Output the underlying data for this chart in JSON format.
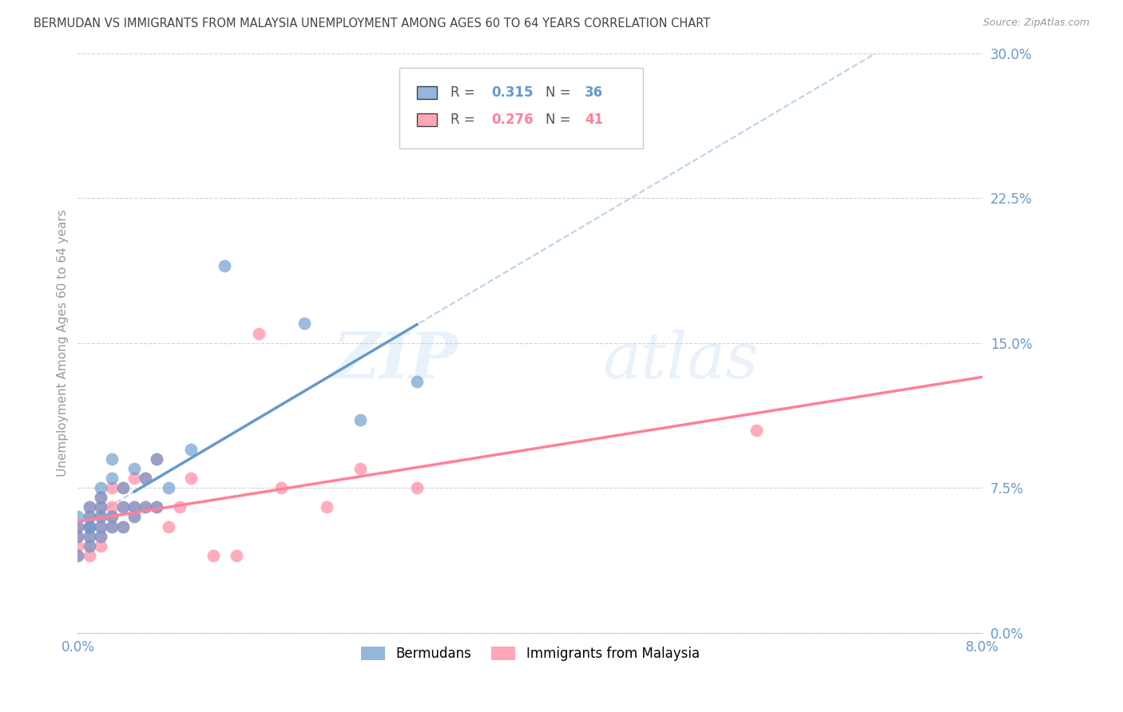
{
  "title": "BERMUDAN VS IMMIGRANTS FROM MALAYSIA UNEMPLOYMENT AMONG AGES 60 TO 64 YEARS CORRELATION CHART",
  "source": "Source: ZipAtlas.com",
  "ylabel": "Unemployment Among Ages 60 to 64 years",
  "xlim": [
    0.0,
    0.08
  ],
  "ylim": [
    0.0,
    0.3
  ],
  "xtick_positions": [
    0.0,
    0.02,
    0.04,
    0.06,
    0.08
  ],
  "xtick_labels": [
    "0.0%",
    "",
    "",
    "",
    "8.0%"
  ],
  "ytick_positions": [
    0.0,
    0.075,
    0.15,
    0.225,
    0.3
  ],
  "ytick_labels": [
    "0.0%",
    "7.5%",
    "15.0%",
    "22.5%",
    "30.0%"
  ],
  "bermuda_color": "#6699CC",
  "malaysia_color": "#FF8099",
  "bermuda_R": "0.315",
  "bermuda_N": "36",
  "malaysia_R": "0.276",
  "malaysia_N": "41",
  "bermuda_x": [
    0.0,
    0.0,
    0.0,
    0.0,
    0.001,
    0.001,
    0.001,
    0.001,
    0.001,
    0.001,
    0.002,
    0.002,
    0.002,
    0.002,
    0.002,
    0.002,
    0.003,
    0.003,
    0.003,
    0.003,
    0.004,
    0.004,
    0.004,
    0.005,
    0.005,
    0.005,
    0.006,
    0.006,
    0.007,
    0.007,
    0.008,
    0.01,
    0.013,
    0.02,
    0.025,
    0.03
  ],
  "bermuda_y": [
    0.04,
    0.05,
    0.055,
    0.06,
    0.045,
    0.05,
    0.055,
    0.055,
    0.06,
    0.065,
    0.05,
    0.055,
    0.06,
    0.065,
    0.07,
    0.075,
    0.055,
    0.06,
    0.08,
    0.09,
    0.055,
    0.065,
    0.075,
    0.06,
    0.065,
    0.085,
    0.065,
    0.08,
    0.065,
    0.09,
    0.075,
    0.095,
    0.19,
    0.16,
    0.11,
    0.13
  ],
  "malaysia_x": [
    0.0,
    0.0,
    0.0,
    0.0,
    0.001,
    0.001,
    0.001,
    0.001,
    0.001,
    0.001,
    0.002,
    0.002,
    0.002,
    0.002,
    0.002,
    0.002,
    0.003,
    0.003,
    0.003,
    0.003,
    0.004,
    0.004,
    0.004,
    0.005,
    0.005,
    0.005,
    0.006,
    0.006,
    0.007,
    0.007,
    0.008,
    0.009,
    0.01,
    0.012,
    0.014,
    0.016,
    0.018,
    0.022,
    0.025,
    0.03,
    0.06
  ],
  "malaysia_y": [
    0.04,
    0.045,
    0.05,
    0.055,
    0.04,
    0.045,
    0.05,
    0.055,
    0.06,
    0.065,
    0.045,
    0.05,
    0.055,
    0.06,
    0.065,
    0.07,
    0.055,
    0.06,
    0.065,
    0.075,
    0.055,
    0.065,
    0.075,
    0.06,
    0.065,
    0.08,
    0.065,
    0.08,
    0.065,
    0.09,
    0.055,
    0.065,
    0.08,
    0.04,
    0.04,
    0.155,
    0.075,
    0.065,
    0.085,
    0.075,
    0.105
  ],
  "watermark_zip": "ZIP",
  "watermark_atlas": "atlas",
  "bg_color": "#FFFFFF",
  "grid_color": "#CCCCCC",
  "title_color": "#444444",
  "axis_color": "#6699CC",
  "legend_label_bermuda": "Bermudans",
  "legend_label_malaysia": "Immigrants from Malaysia"
}
